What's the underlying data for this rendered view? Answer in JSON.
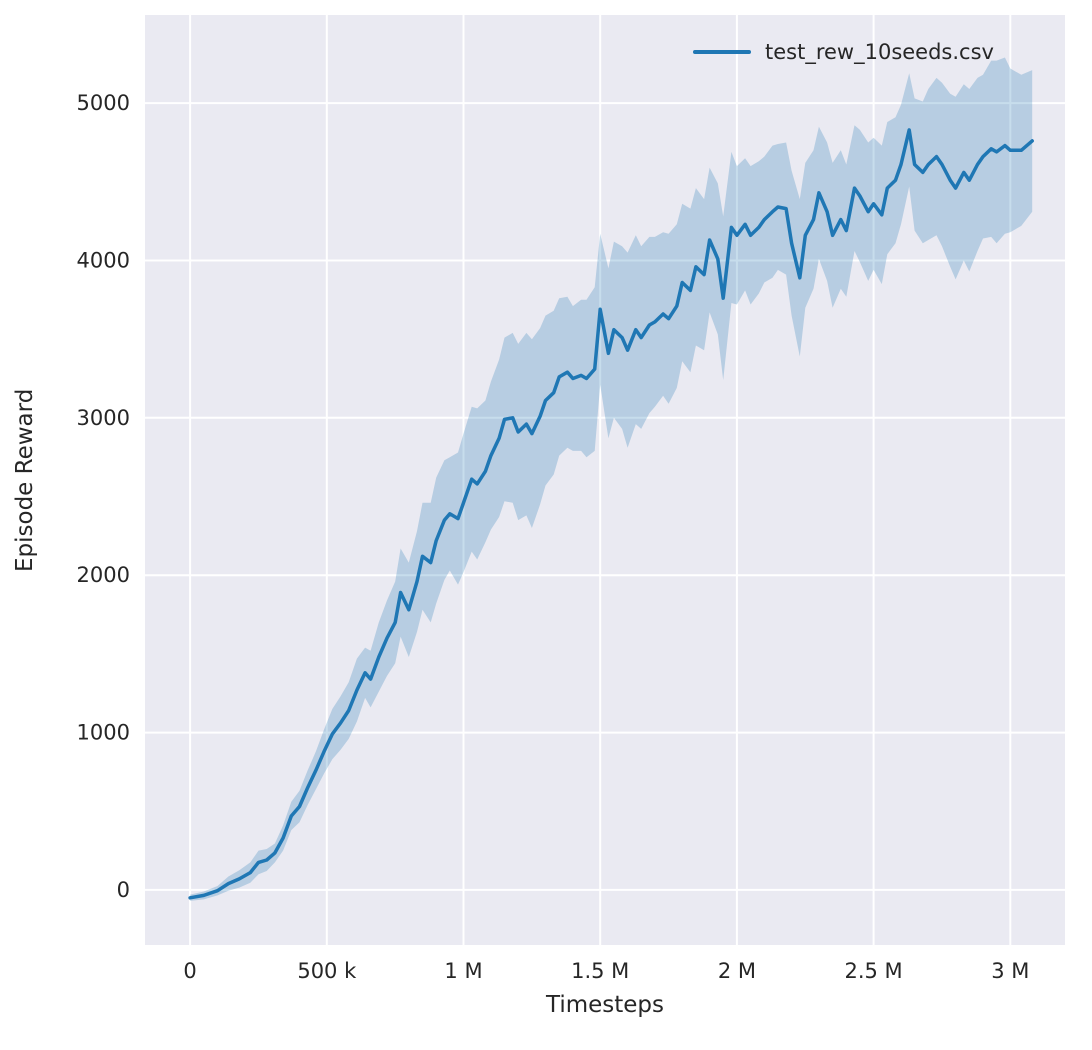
{
  "figure": {
    "background": "#ffffff",
    "plot_background": "#eaeaf2",
    "grid_color": "#ffffff",
    "text_color": "#262626",
    "accent": "#1f77b4"
  },
  "chart_data": {
    "type": "line",
    "title": "",
    "xlabel": "Timesteps",
    "ylabel": "Episode Reward",
    "legend": [
      "test_rew_10seeds.csv"
    ],
    "legend_position": "upper right",
    "grid": true,
    "xlim": [
      -165000,
      3200000
    ],
    "ylim": [
      -350,
      5560
    ],
    "x_ticks": [
      0,
      500000,
      1000000,
      1500000,
      2000000,
      2500000,
      3000000
    ],
    "x_tick_labels": [
      "0",
      "500 k",
      "1 M",
      "1.5 M",
      "2 M",
      "2.5 M",
      "3 M"
    ],
    "y_ticks": [
      0,
      1000,
      2000,
      3000,
      4000,
      5000
    ],
    "y_tick_labels": [
      "0",
      "1000",
      "2000",
      "3000",
      "4000",
      "5000"
    ],
    "x_scale": 1000000,
    "x_unit": "timesteps (values below in millions)",
    "band_meaning": "shaded region = mean ± band_halfwidth across 10 seeds",
    "series": [
      {
        "name": "test_rew_10seeds.csv",
        "color": "#1f77b4",
        "band_color": "#1f77b4",
        "band_opacity": 0.25,
        "x": [
          0,
          0.05,
          0.1,
          0.14,
          0.18,
          0.22,
          0.25,
          0.28,
          0.31,
          0.34,
          0.37,
          0.4,
          0.43,
          0.46,
          0.49,
          0.52,
          0.55,
          0.58,
          0.61,
          0.64,
          0.66,
          0.69,
          0.72,
          0.75,
          0.77,
          0.8,
          0.83,
          0.85,
          0.88,
          0.9,
          0.93,
          0.95,
          0.98,
          1,
          1.03,
          1.05,
          1.08,
          1.1,
          1.13,
          1.15,
          1.18,
          1.2,
          1.23,
          1.25,
          1.28,
          1.3,
          1.33,
          1.35,
          1.38,
          1.4,
          1.43,
          1.45,
          1.48,
          1.5,
          1.53,
          1.55,
          1.58,
          1.6,
          1.63,
          1.65,
          1.68,
          1.7,
          1.73,
          1.75,
          1.78,
          1.8,
          1.83,
          1.85,
          1.88,
          1.9,
          1.93,
          1.95,
          1.98,
          2,
          2.03,
          2.05,
          2.08,
          2.1,
          2.13,
          2.15,
          2.18,
          2.2,
          2.23,
          2.25,
          2.28,
          2.3,
          2.33,
          2.35,
          2.38,
          2.4,
          2.43,
          2.45,
          2.48,
          2.5,
          2.53,
          2.55,
          2.58,
          2.6,
          2.63,
          2.65,
          2.68,
          2.7,
          2.73,
          2.75,
          2.78,
          2.8,
          2.83,
          2.85,
          2.88,
          2.9,
          2.93,
          2.95,
          2.98,
          3,
          3.04,
          3.08
        ],
        "mean": [
          -50,
          -35,
          -5,
          40,
          70,
          110,
          175,
          190,
          235,
          330,
          470,
          530,
          650,
          760,
          880,
          990,
          1060,
          1140,
          1270,
          1380,
          1340,
          1480,
          1600,
          1700,
          1890,
          1780,
          1960,
          2120,
          2080,
          2220,
          2350,
          2390,
          2360,
          2460,
          2610,
          2580,
          2660,
          2760,
          2870,
          2990,
          3000,
          2910,
          2960,
          2900,
          3010,
          3110,
          3160,
          3260,
          3290,
          3250,
          3270,
          3250,
          3310,
          3690,
          3410,
          3560,
          3510,
          3430,
          3560,
          3510,
          3590,
          3610,
          3660,
          3630,
          3710,
          3860,
          3810,
          3960,
          3910,
          4130,
          4010,
          3760,
          4210,
          4160,
          4230,
          4160,
          4210,
          4260,
          4310,
          4340,
          4330,
          4110,
          3890,
          4160,
          4260,
          4430,
          4310,
          4160,
          4260,
          4190,
          4460,
          4410,
          4310,
          4360,
          4290,
          4460,
          4510,
          4610,
          4830,
          4610,
          4560,
          4610,
          4660,
          4610,
          4510,
          4460,
          4560,
          4510,
          4610,
          4660,
          4710,
          4690,
          4730,
          4700,
          4700,
          4760
        ],
        "band_halfwidth": [
          20,
          25,
          30,
          45,
          55,
          65,
          75,
          70,
          60,
          80,
          90,
          100,
          110,
          120,
          140,
          160,
          170,
          180,
          200,
          160,
          180,
          220,
          240,
          260,
          280,
          300,
          320,
          340,
          380,
          400,
          380,
          360,
          420,
          440,
          460,
          480,
          450,
          470,
          500,
          520,
          540,
          560,
          580,
          600,
          560,
          540,
          520,
          500,
          480,
          460,
          480,
          500,
          520,
          480,
          540,
          560,
          580,
          620,
          600,
          580,
          560,
          540,
          520,
          540,
          520,
          500,
          520,
          500,
          480,
          460,
          480,
          520,
          480,
          440,
          420,
          440,
          420,
          400,
          420,
          400,
          420,
          460,
          500,
          460,
          440,
          420,
          440,
          460,
          440,
          420,
          400,
          420,
          440,
          420,
          440,
          420,
          400,
          380,
          360,
          420,
          450,
          480,
          500,
          520,
          550,
          580,
          560,
          580,
          550,
          520,
          560,
          580,
          560,
          520,
          480,
          450
        ]
      }
    ]
  }
}
